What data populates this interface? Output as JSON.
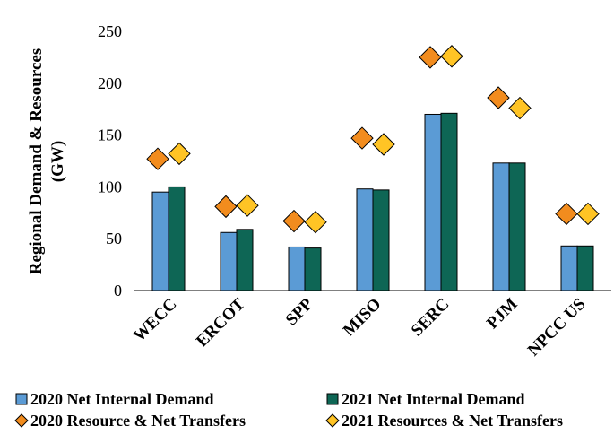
{
  "chart_data": {
    "type": "bar",
    "ylabel": "Regional Demand & Resources (GW)",
    "ylabel_lines": [
      "Regional Demand & Resources",
      "(GW)"
    ],
    "ylim": [
      0,
      250
    ],
    "yticks": [
      0,
      50,
      100,
      150,
      200,
      250
    ],
    "grid": false,
    "legend_position": "bottom",
    "categories": [
      "WECC",
      "ERCOT",
      "SPP",
      "MISO",
      "SERC",
      "PJM",
      "NPCC US"
    ],
    "series": [
      {
        "name": "2020 Net Internal Demand",
        "kind": "bar",
        "color": "#5B9BD5",
        "values": [
          95,
          56,
          42,
          98,
          170,
          123,
          43
        ]
      },
      {
        "name": "2021 Net Internal Demand",
        "kind": "bar",
        "color": "#0E6655",
        "values": [
          100,
          59,
          41,
          97,
          171,
          123,
          43
        ]
      },
      {
        "name": "2020 Resource & Net Transfers",
        "kind": "marker",
        "color": "#F28C1E",
        "values": [
          127,
          81,
          67,
          147,
          225,
          186,
          74
        ]
      },
      {
        "name": "2021 Resources & Net Transfers",
        "kind": "marker",
        "color": "#FFC425",
        "values": [
          132,
          82,
          66,
          141,
          226,
          176,
          74
        ]
      }
    ]
  }
}
